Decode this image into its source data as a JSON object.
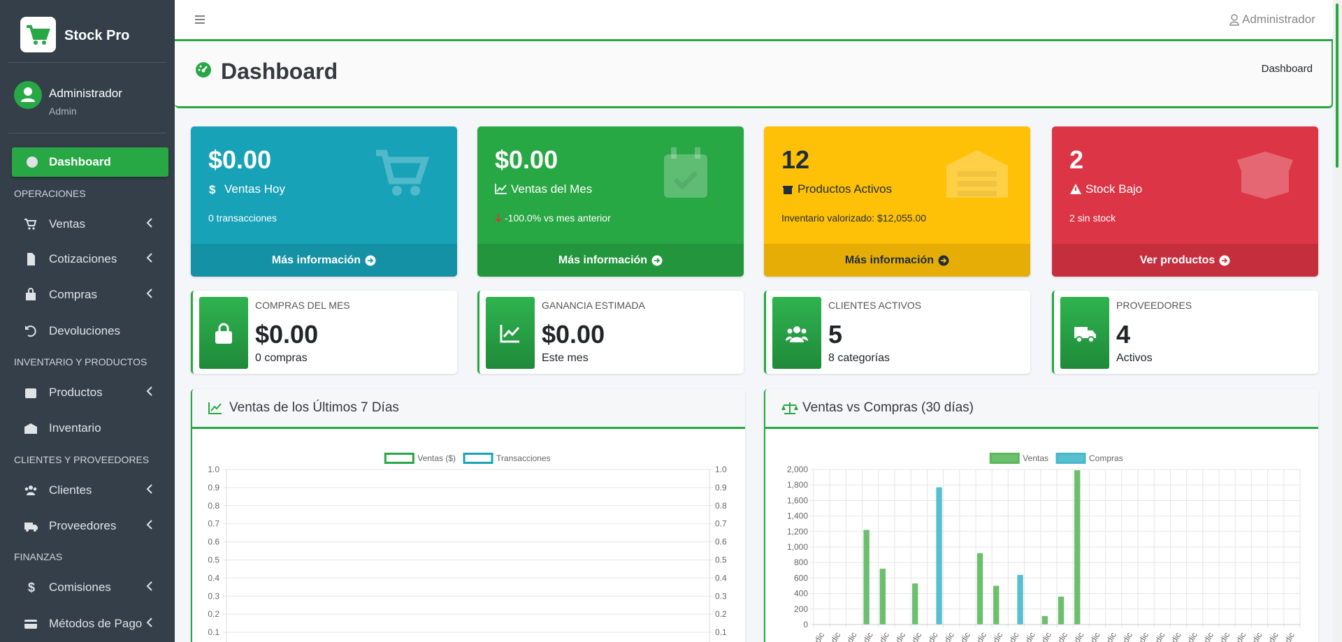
{
  "sidebar": {
    "brand": "Stock Pro",
    "user": {
      "name": "Administrador",
      "role": "Admin"
    },
    "menu": [
      {
        "label": "Dashboard"
      },
      {
        "heading": "OPERACIONES"
      },
      {
        "label": "Ventas"
      },
      {
        "label": "Cotizaciones"
      },
      {
        "label": "Compras"
      },
      {
        "label": "Devoluciones"
      },
      {
        "heading": "INVENTARIO Y PRODUCTOS"
      },
      {
        "label": "Productos"
      },
      {
        "label": "Inventario"
      },
      {
        "heading": "CLIENTES Y PROVEEDORES"
      },
      {
        "label": "Clientes"
      },
      {
        "label": "Proveedores"
      },
      {
        "heading": "FINANZAS"
      },
      {
        "label": "Comisiones"
      },
      {
        "label": "Métodos de Pago"
      }
    ]
  },
  "topbar": {
    "user": "Administrador"
  },
  "header": {
    "title": "Dashboard",
    "breadcrumb": "Dashboard"
  },
  "stat_boxes": [
    {
      "value": "$0.00",
      "label": "Ventas Hoy",
      "note": "0 transacciones",
      "link": "Más información",
      "color": "#17a2b8"
    },
    {
      "value": "$0.00",
      "label": "Ventas del Mes",
      "note": "-100.0% vs mes anterior",
      "link": "Más información",
      "color": "#28a745"
    },
    {
      "value": 12,
      "label": "Productos Activos",
      "note": "Inventario valorizado: $12,055.00",
      "link": "Más información",
      "color": "#ffc107"
    },
    {
      "value": 2,
      "label": "Stock Bajo",
      "note": "2 sin stock",
      "link": "Ver productos",
      "color": "#dc3545"
    }
  ],
  "info_boxes": [
    {
      "label": "COMPRAS DEL MES",
      "value": "$0.00",
      "note": "0 compras"
    },
    {
      "label": "GANANCIA ESTIMADA",
      "value": "$0.00",
      "note": "Este mes"
    },
    {
      "label": "CLIENTES ACTIVOS",
      "value": 5,
      "note": "8 categorías"
    },
    {
      "label": "PROVEEDORES",
      "value": 4,
      "note": "Activos"
    }
  ],
  "charts": [
    {
      "title": "Ventas de los Últimos 7 Días",
      "chart_data": {
        "type": "line",
        "series": [
          {
            "name": "Ventas ($)",
            "color": "#28a745",
            "values": []
          },
          {
            "name": "Transacciones",
            "color": "#17a2b8",
            "values": [],
            "axis": "y2"
          }
        ],
        "ylim": [
          0,
          1
        ],
        "yticks": [
          0.1,
          0.2,
          0.3,
          0.4,
          0.5,
          0.6,
          0.7,
          0.8,
          0.9,
          {
            "value": 1,
            "label": "1.0"
          }
        ],
        "y2lim": [
          0,
          1
        ],
        "y2ticks": [
          0.1,
          0.2,
          0.3,
          0.4,
          0.5,
          0.6,
          0.7,
          0.8,
          0.9,
          {
            "value": 1,
            "label": "1.0"
          }
        ],
        "grid": true
      }
    },
    {
      "title": "Ventas vs Compras (30 días)",
      "chart_data": {
        "type": "bar",
        "categories": [
          "dic",
          "dic",
          "dic",
          "dic",
          "dic",
          "dic",
          "dic",
          "dic",
          "dic",
          "dic",
          "dic",
          "dic",
          "dic",
          "dic",
          "dic",
          "dic",
          "dic",
          "dic",
          "dic",
          "dic",
          "dic",
          "dic",
          "dic",
          "dic",
          "dic",
          "dic",
          "dic",
          "dic",
          "dic",
          "dic"
        ],
        "series": [
          {
            "name": "Ventas",
            "color": "#5cb85c",
            "values": [
              0,
              0,
              0,
              1220,
              720,
              0,
              530,
              0,
              0,
              0,
              920,
              500,
              0,
              0,
              110,
              360,
              1990,
              0,
              0,
              0,
              0,
              0,
              0,
              0,
              0,
              0,
              0,
              0,
              0,
              0
            ]
          },
          {
            "name": "Compras",
            "color": "#46b8c9",
            "values": [
              0,
              0,
              0,
              0,
              0,
              0,
              0,
              1770,
              0,
              0,
              0,
              0,
              640,
              0,
              0,
              0,
              0,
              0,
              0,
              0,
              0,
              0,
              0,
              0,
              0,
              0,
              0,
              0,
              0,
              0
            ]
          }
        ],
        "ylim": [
          0,
          2000
        ],
        "yticks": [
          0,
          200,
          400,
          600,
          800,
          {
            "value": 1000,
            "label": "1,000"
          },
          {
            "value": 1200,
            "label": "1,200"
          },
          {
            "value": 1400,
            "label": "1,400"
          },
          {
            "value": 1600,
            "label": "1,600"
          },
          {
            "value": 1800,
            "label": "1,800"
          },
          {
            "value": 2000,
            "label": "2,000"
          }
        ],
        "grid": true
      }
    }
  ]
}
